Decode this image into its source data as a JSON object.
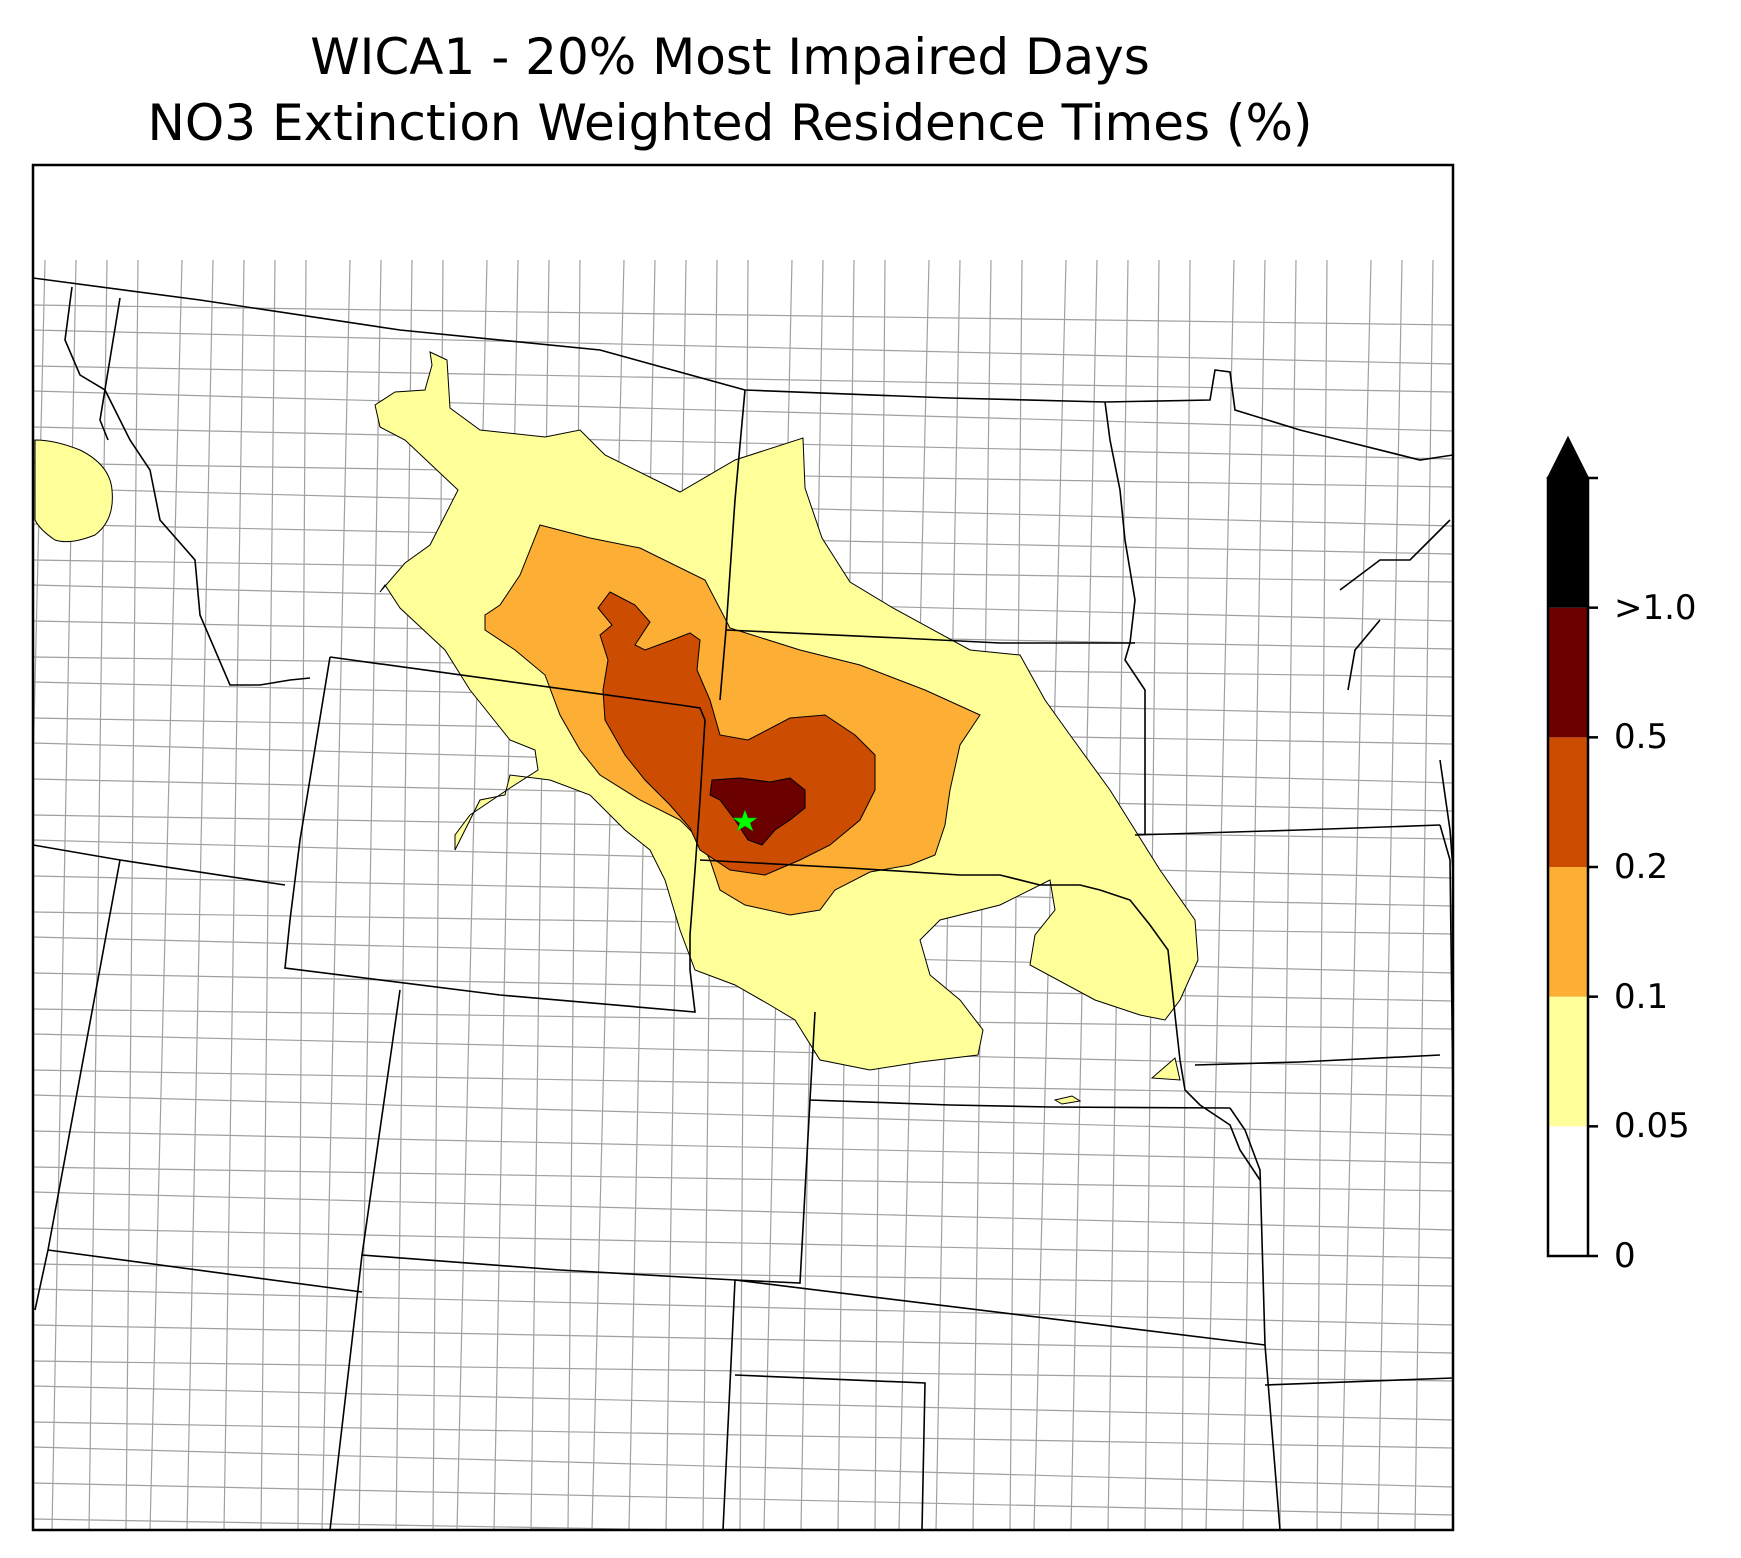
{
  "title": {
    "line1": "WICA1 - 20% Most Impaired Days",
    "line2": "NO3 Extinction Weighted Residence Times (%)"
  },
  "colorbar": {
    "levels": [
      {
        "label": "0",
        "color": "#ffffff"
      },
      {
        "label": "0.05",
        "color": "#ffff99"
      },
      {
        "label": "0.1",
        "color": "#fdae35"
      },
      {
        "label": "0.2",
        "color": "#cc4c02"
      },
      {
        "label": "0.5",
        "color": "#6b0000"
      },
      {
        "label": ">1.0",
        "color": "#000000"
      }
    ],
    "extend": "max",
    "labels": [
      "0",
      "0.05",
      "0.1",
      "0.2",
      "0.5",
      ">1.0"
    ]
  },
  "colors": {
    "state_border": "#000000",
    "county_border": "#a0a0a0",
    "site_marker": "#00ff00"
  },
  "site": {
    "name": "WICA1",
    "marker": "star-icon"
  }
}
